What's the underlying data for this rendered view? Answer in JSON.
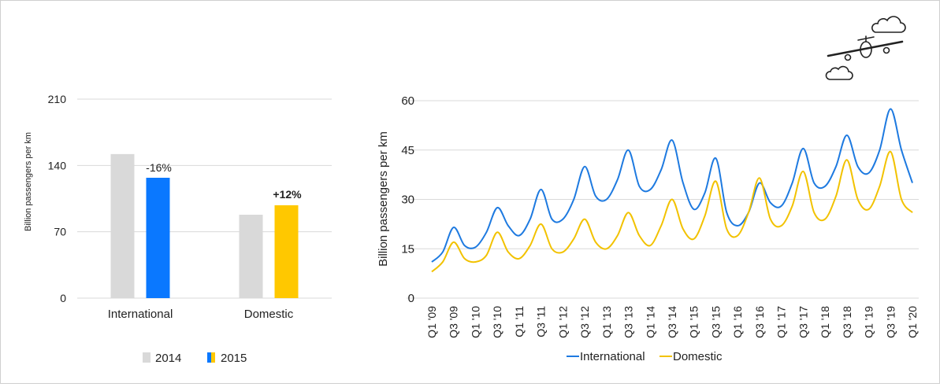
{
  "colors": {
    "bar_2014": "#d9d9d9",
    "bar_international_2015": "#0a78ff",
    "bar_domestic_2015": "#ffc800",
    "line_international": "#1e7ae0",
    "line_domestic": "#f2c200",
    "grid": "#d9d9d9"
  },
  "icons": {
    "decor": "airplane-with-clouds-icon"
  },
  "chart_data": [
    {
      "type": "bar",
      "categories": [
        "International",
        "Domestic"
      ],
      "series": [
        {
          "name": "2014",
          "values": [
            152,
            88
          ]
        },
        {
          "name": "2015",
          "values": [
            127,
            98
          ]
        }
      ],
      "annotations": [
        "-16%",
        "+12%"
      ],
      "ylabel": "Billion passengers per km",
      "yticks": [
        "0",
        "70",
        "140",
        "210"
      ],
      "ylim": [
        0,
        210
      ],
      "legend": [
        "2014",
        "2015"
      ],
      "legend_position": "bottom",
      "grid": true
    },
    {
      "type": "line",
      "ylabel": "Billion passengers per km",
      "yticks": [
        "0",
        "15",
        "30",
        "45",
        "60"
      ],
      "ylim": [
        0,
        65
      ],
      "x_tick_labels": [
        "Q1 '09",
        "Q3 '09",
        "Q1 '10",
        "Q3 '10",
        "Q1 '11",
        "Q3 '11",
        "Q1 '12",
        "Q3 '12",
        "Q1 '13",
        "Q3 '13",
        "Q1 '14",
        "Q3 '14",
        "Q1 '15",
        "Q3 '15",
        "Q1 '16",
        "Q3 '16",
        "Q1 '17",
        "Q3 '17",
        "Q1 '18",
        "Q3 '18",
        "Q1 '19",
        "Q3 '19",
        "Q1 '20"
      ],
      "legend_position": "bottom",
      "grid": true,
      "series": [
        {
          "name": "International",
          "values": [
            11,
            14,
            21.5,
            16,
            15.5,
            20,
            27.5,
            22,
            19,
            24,
            33,
            24,
            24,
            30,
            40,
            31,
            30,
            36,
            45,
            34,
            33,
            39,
            48,
            35,
            27,
            32,
            42.5,
            26,
            22,
            26,
            35,
            29,
            28,
            35,
            45.5,
            35,
            34,
            40,
            49.5,
            40,
            38,
            45,
            57.5,
            45,
            35
          ]
        },
        {
          "name": "Domestic",
          "values": [
            8,
            11,
            17,
            12,
            11,
            13,
            20,
            14,
            12,
            16,
            22.5,
            15,
            14,
            18,
            24,
            17,
            15,
            19,
            26,
            19,
            16,
            22,
            30,
            21,
            18,
            25,
            35.5,
            21,
            19,
            26,
            36.5,
            24,
            22,
            28,
            38.5,
            26,
            24,
            31,
            42,
            30,
            27,
            34,
            44.5,
            30,
            26
          ]
        }
      ]
    }
  ]
}
